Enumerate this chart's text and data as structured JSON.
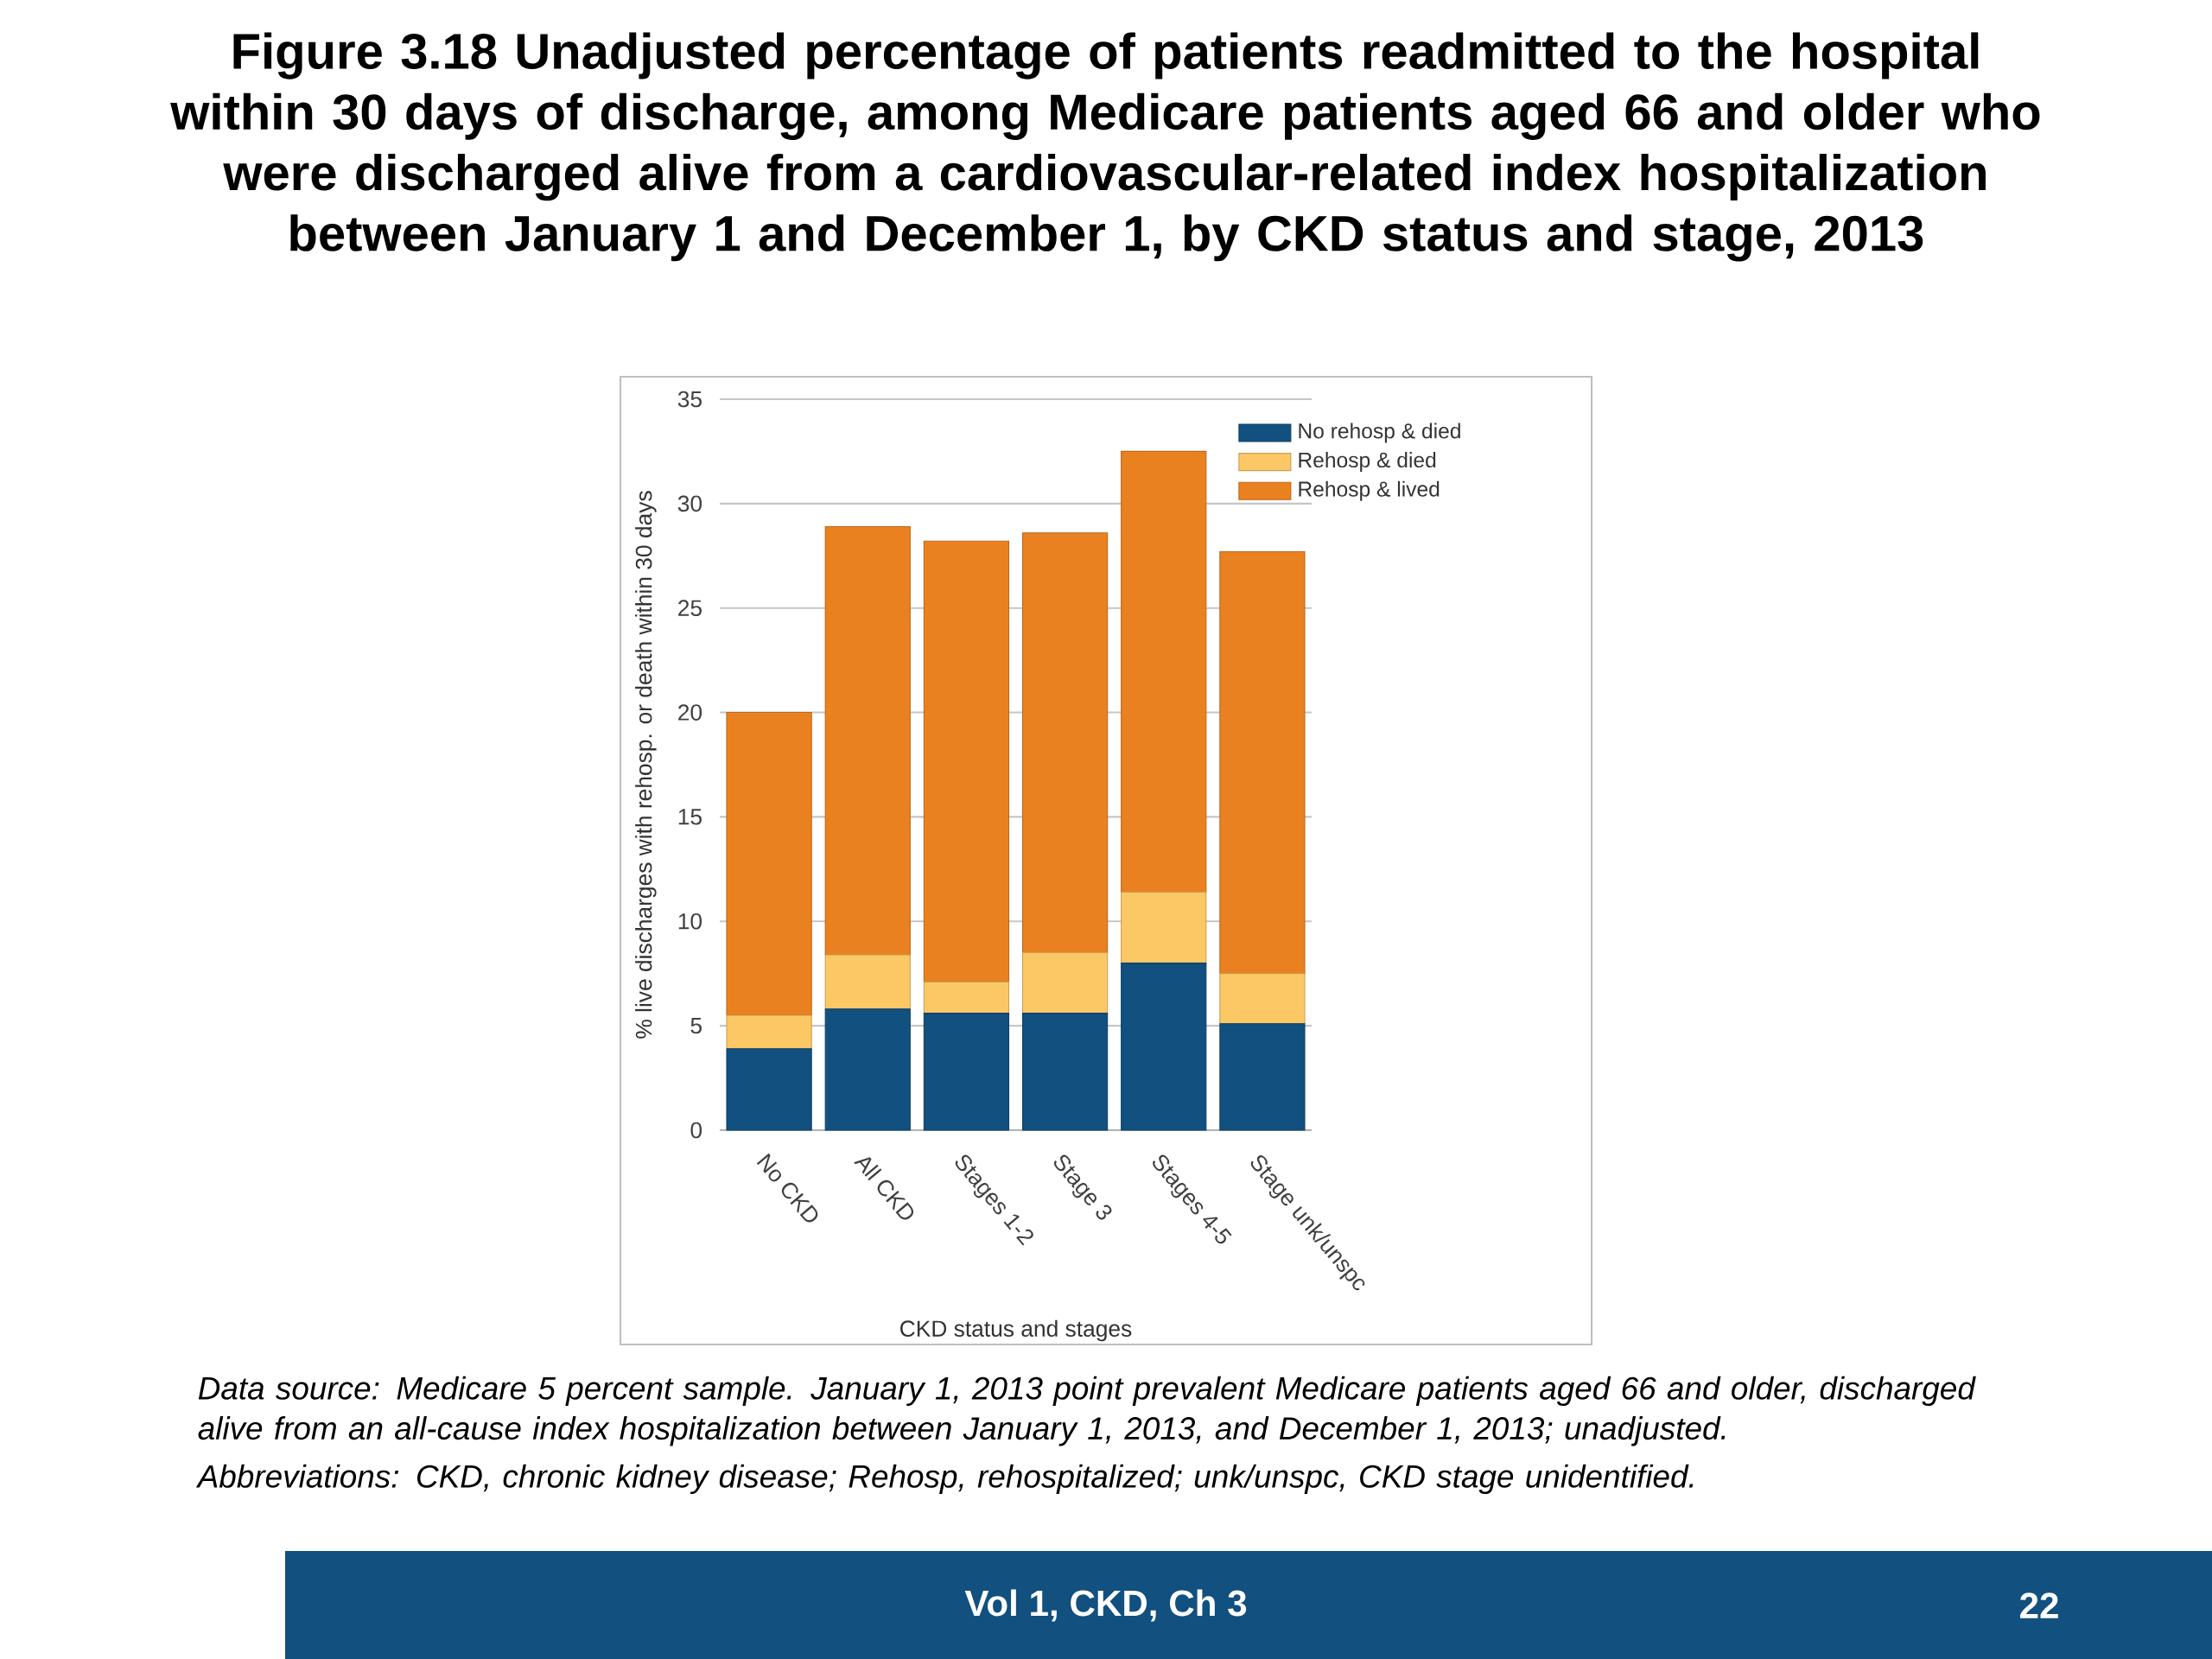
{
  "chart_data": {
    "type": "bar",
    "stacked": true,
    "title": "Figure 3.18  Unadjusted percentage of patients readmitted to the hospital within 30 days of discharge, among Medicare patients aged 66 and older who were discharged alive from a cardiovascular-related index hospitalization between January 1 and December 1, by CKD status and stage, 2013",
    "xlabel": "CKD status and stages",
    "ylabel": "% live discharges with rehosp. or death within 30 days",
    "categories": [
      "No CKD",
      "All CKD",
      "Stages 1-2",
      "Stage 3",
      "Stages 4-5",
      "Stage unk/unspc"
    ],
    "series": [
      {
        "name": "No rehosp & died",
        "color": "#11507f",
        "values": [
          3.9,
          5.8,
          5.6,
          5.6,
          8.0,
          5.1
        ]
      },
      {
        "name": "Rehosp & died",
        "color": "#fcc765",
        "values": [
          1.6,
          2.6,
          1.5,
          2.9,
          3.4,
          2.4
        ]
      },
      {
        "name": "Rehosp & lived",
        "color": "#ea8120",
        "values": [
          14.5,
          20.5,
          21.1,
          20.1,
          21.1,
          20.2
        ]
      }
    ],
    "ylim": [
      0,
      35
    ],
    "yticks": [
      0,
      5,
      10,
      15,
      20,
      25,
      30,
      35
    ],
    "grid": "y",
    "legend": "top right",
    "annotations": [
      "Data source: Medicare 5 percent sample. January 1, 2013 point prevalent Medicare patients aged 66 and older, discharged alive from an all-cause index hospitalization between January 1, 2013, and December 1, 2013; unadjusted.",
      "Abbreviations: CKD, chronic kidney disease; Rehosp, rehospitalized; unk/unspc, CKD stage unidentified.",
      "Vol 1, CKD, Ch 3",
      "22"
    ]
  }
}
